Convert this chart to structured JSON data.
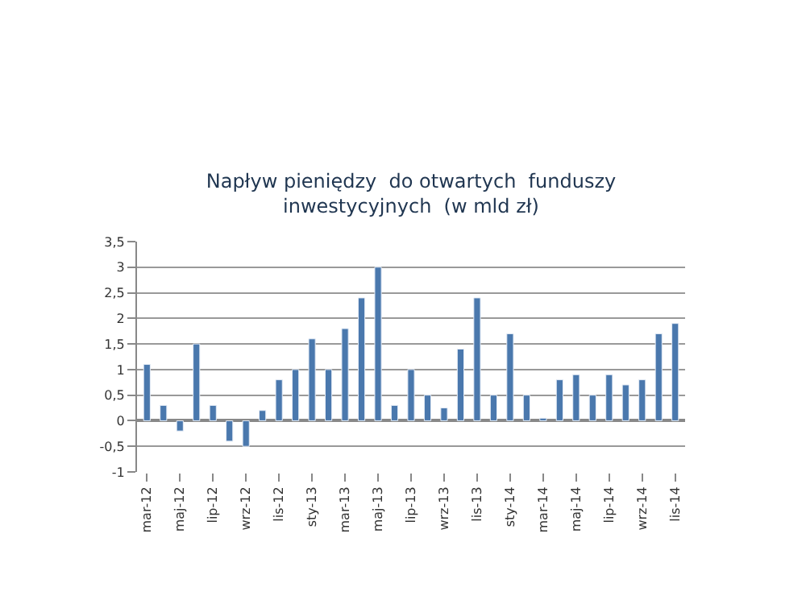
{
  "chart_data": {
    "type": "bar",
    "title": "Napływ pieniędzy  do otwartych  funduszy\ninwestycyjnych  (w mld zł)",
    "categories": [
      "mar-12",
      null,
      "maj-12",
      null,
      "lip-12",
      null,
      "wrz-12",
      null,
      "lis-12",
      null,
      "sty-13",
      null,
      "mar-13",
      null,
      "maj-13",
      null,
      "lip-13",
      null,
      "wrz-13",
      null,
      "lis-13",
      null,
      "sty-14",
      null,
      "mar-14",
      null,
      "maj-14",
      null,
      "lip-14",
      null,
      "wrz-14",
      null,
      "lis-14"
    ],
    "values": [
      1.1,
      0.3,
      -0.2,
      1.5,
      0.3,
      -0.4,
      -0.5,
      0.2,
      0.8,
      1.0,
      1.6,
      1.0,
      1.8,
      2.4,
      3.0,
      0.3,
      1.0,
      0.5,
      0.25,
      1.4,
      2.4,
      0.5,
      1.7,
      0.5,
      0.05,
      0.8,
      0.9,
      0.5,
      0.9,
      0.7,
      0.8,
      1.7,
      1.9
    ],
    "color": "#4a78ad",
    "ylim": [
      -1,
      3.5
    ],
    "yticks": [
      -1,
      {
        "value": -0.5,
        "label": "-0,5"
      },
      0,
      {
        "value": 0.5,
        "label": "0,5"
      },
      1,
      {
        "value": 1.5,
        "label": "1,5"
      },
      2,
      {
        "value": 2.5,
        "label": "2,5"
      },
      3,
      {
        "value": 3.5,
        "label": "3,5"
      }
    ],
    "grid": "y"
  }
}
